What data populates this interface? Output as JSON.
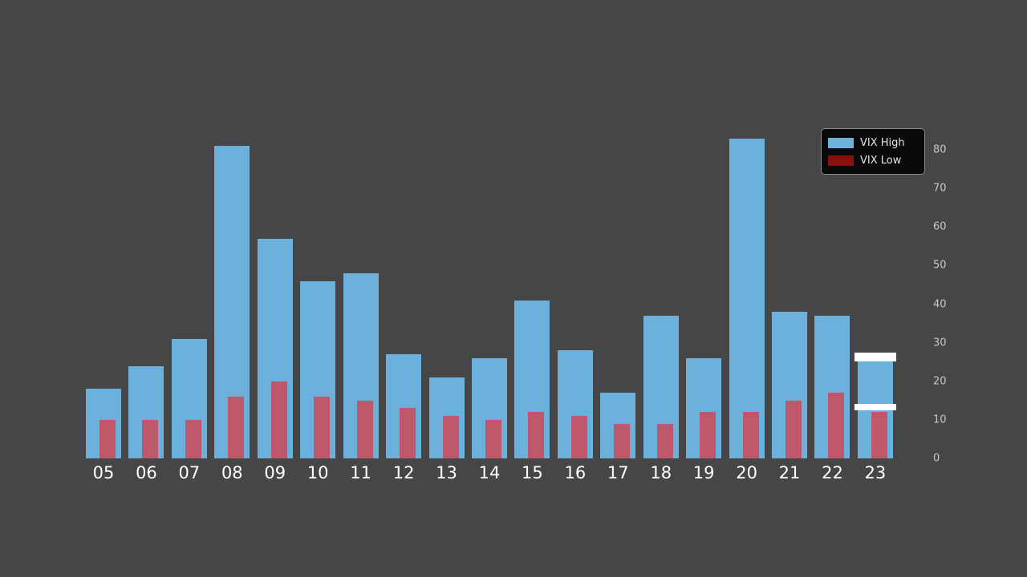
{
  "chart_data": {
    "type": "bar",
    "title": "",
    "xlabel": "",
    "ylabel": "",
    "categories": [
      "05",
      "06",
      "07",
      "08",
      "09",
      "10",
      "11",
      "12",
      "13",
      "14",
      "15",
      "16",
      "17",
      "18",
      "19",
      "20",
      "21",
      "22",
      "23"
    ],
    "series": [
      {
        "name": "VIX High",
        "color": "#6cb0dc",
        "values": [
          18,
          24,
          31,
          81,
          57,
          46,
          48,
          27,
          21,
          26,
          41,
          28,
          17,
          37,
          26,
          83,
          38,
          37,
          27
        ]
      },
      {
        "name": "VIX Low",
        "color": "#c0586c",
        "values": [
          10,
          10,
          10,
          16,
          20,
          16,
          15,
          13,
          11,
          10,
          12,
          11,
          9,
          9,
          12,
          12,
          15,
          17,
          12
        ]
      }
    ],
    "ylim": [
      0,
      85
    ],
    "yticks": [
      0,
      10,
      20,
      30,
      40,
      50,
      60,
      70,
      80
    ],
    "grid": false,
    "legend_position": "upper right",
    "highlight": {
      "category": "23",
      "color": "#ffffff",
      "note": "white cap stripes at top of both bars for year 23"
    }
  },
  "legend": {
    "items": [
      {
        "label": "VIX High",
        "swatch": "#6cb0dc"
      },
      {
        "label": "VIX Low",
        "swatch": "#8b0f0f"
      }
    ]
  },
  "colors": {
    "background": "#464646",
    "x_tick_label": "#ffffff",
    "y_tick_label": "#c9c9c9",
    "legend_background": "#0a0a0a",
    "legend_border": "#8a8a8a",
    "highlight_cap": "#ffffff"
  }
}
